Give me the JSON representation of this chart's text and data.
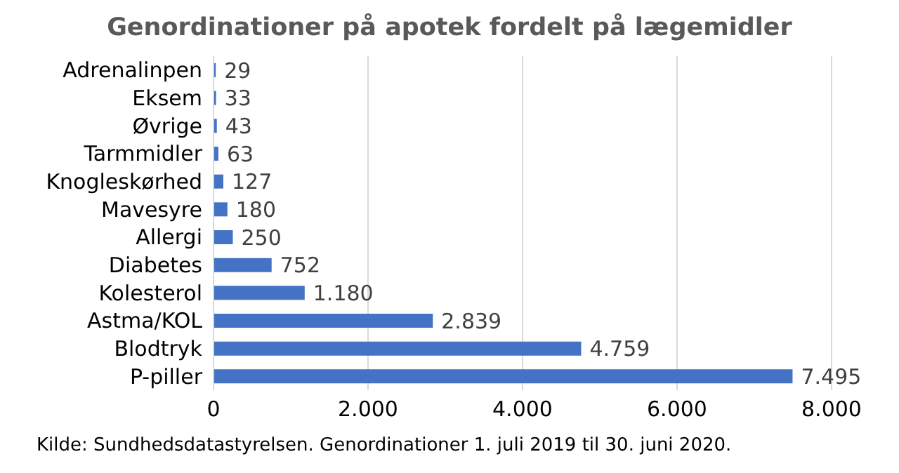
{
  "chart_data": {
    "type": "bar",
    "orientation": "horizontal",
    "title": "Genordinationer  på apotek fordelt på lægemidler",
    "categories": [
      "Adrenalinpen",
      "Eksem",
      "Øvrige",
      "Tarmmidler",
      "Knogleskørhed",
      "Mavesyre",
      "Allergi",
      "Diabetes",
      "Kolesterol",
      "Astma/KOL",
      "Blodtryk",
      "P-piller"
    ],
    "values": [
      29,
      33,
      43,
      63,
      127,
      180,
      250,
      752,
      1180,
      2839,
      4759,
      7495
    ],
    "value_labels": [
      "29",
      "33",
      "43",
      "63",
      "127",
      "180",
      "250",
      "752",
      "1.180",
      "2.839",
      "4.759",
      "7.495"
    ],
    "color": "#4472c4",
    "xlim": [
      0,
      8000
    ],
    "xticks": [
      0,
      {
        "value": 2000,
        "label": "2.000"
      },
      {
        "value": 4000,
        "label": "4.000"
      },
      {
        "value": 6000,
        "label": "6.000"
      },
      {
        "value": 8000,
        "label": "8.000"
      }
    ],
    "grid": "x",
    "annotations": [
      "Kilde: Sundhedsdatastyrelsen. Genordinationer 1. juli 2019 til 30. juni 2020."
    ]
  }
}
